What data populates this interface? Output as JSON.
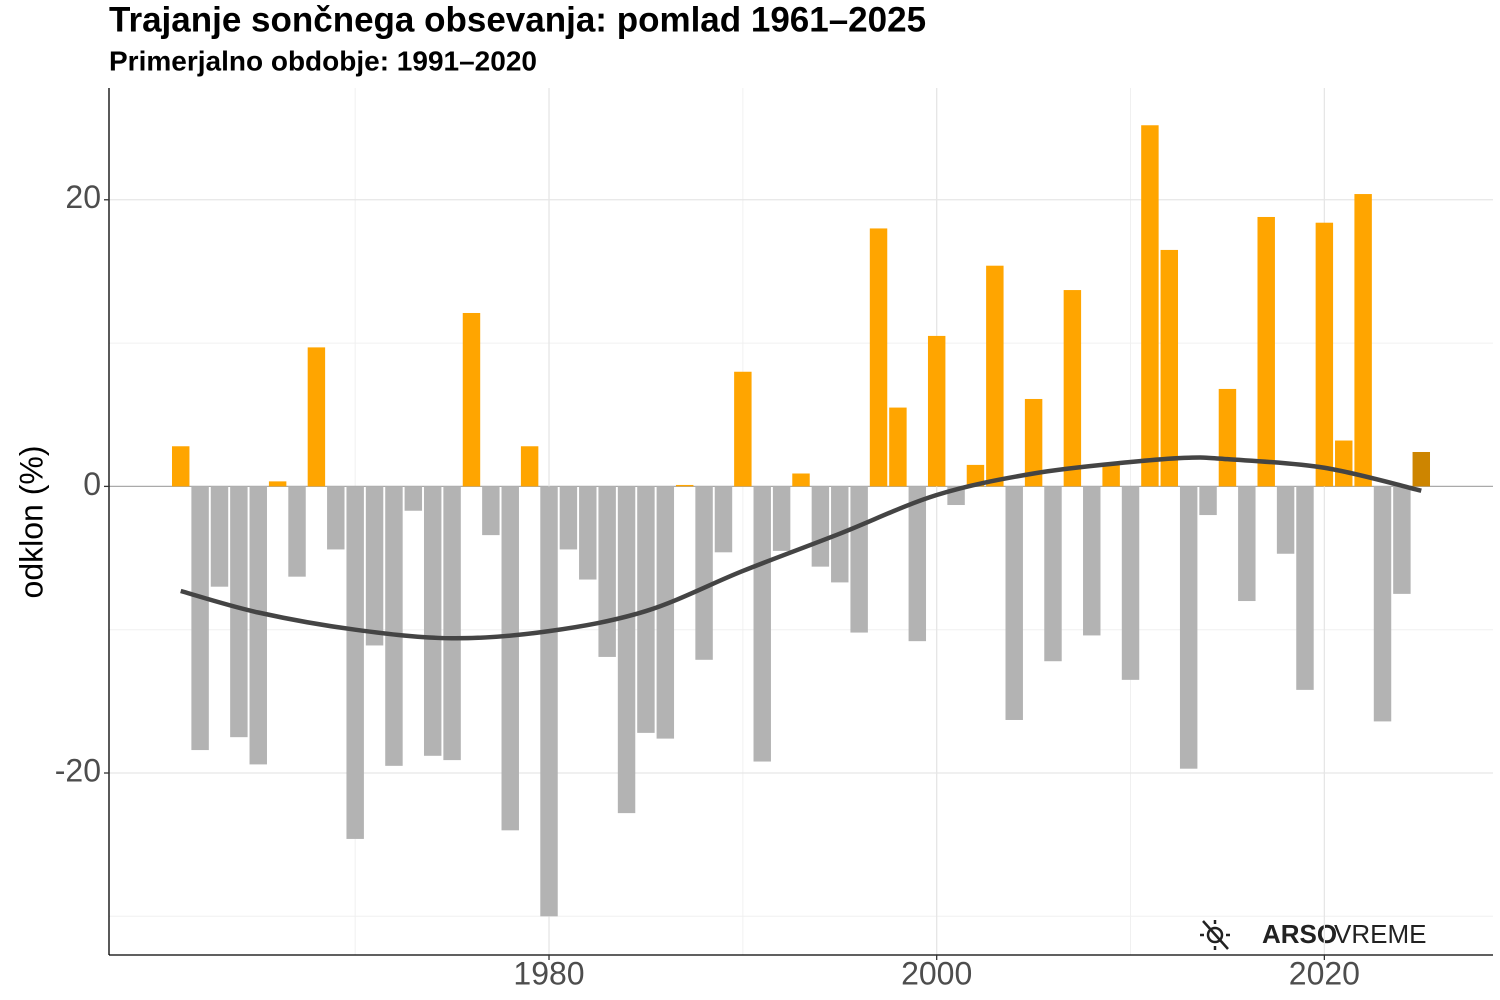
{
  "chart_data": {
    "type": "bar",
    "title": "Trajanje sončnega obsevanja: pomlad 1961–2025",
    "subtitle": "Primerjalno obdobje: 1991–2020",
    "ylabel": "odklon (%)",
    "x": [
      1961,
      1962,
      1963,
      1964,
      1965,
      1966,
      1967,
      1968,
      1969,
      1970,
      1971,
      1972,
      1973,
      1974,
      1975,
      1976,
      1977,
      1978,
      1979,
      1980,
      1981,
      1982,
      1983,
      1984,
      1985,
      1986,
      1987,
      1988,
      1989,
      1990,
      1991,
      1992,
      1993,
      1994,
      1995,
      1996,
      1997,
      1998,
      1999,
      2000,
      2001,
      2002,
      2003,
      2004,
      2005,
      2006,
      2007,
      2008,
      2009,
      2010,
      2011,
      2012,
      2013,
      2014,
      2015,
      2016,
      2017,
      2018,
      2019,
      2020,
      2021,
      2022,
      2023,
      2024,
      2025
    ],
    "values": [
      2.8,
      -18.4,
      -7.0,
      -17.5,
      -19.4,
      0.35,
      -6.3,
      9.7,
      -4.4,
      -24.6,
      -11.1,
      -19.5,
      -1.7,
      -18.8,
      -19.1,
      12.1,
      -3.4,
      -24.0,
      2.8,
      -30.0,
      -4.4,
      -6.5,
      -11.9,
      -22.8,
      -17.2,
      -17.6,
      0.1,
      -12.1,
      -4.6,
      8.0,
      -19.2,
      -4.5,
      0.9,
      -5.6,
      -6.7,
      -10.2,
      18.0,
      5.5,
      -10.8,
      10.5,
      -1.3,
      1.5,
      15.4,
      -16.3,
      6.1,
      -12.2,
      13.7,
      -10.4,
      1.5,
      -13.5,
      25.2,
      16.5,
      -19.7,
      -2.0,
      6.8,
      -8.0,
      18.8,
      -4.7,
      -14.2,
      18.4,
      3.2,
      20.4,
      -16.4,
      -7.5,
      2.4
    ],
    "color_positive": "#ffa500",
    "color_negative": "#b3b3b3",
    "color_last": "#cd8500",
    "trend": {
      "color": "#444444",
      "x": [
        1961,
        1965,
        1970,
        1975,
        1980,
        1985,
        1990,
        1995,
        2000,
        2005,
        2010,
        2013,
        2015,
        2020,
        2025
      ],
      "values": [
        -7.3,
        -8.8,
        -10.0,
        -10.6,
        -10.1,
        -8.7,
        -5.9,
        -3.3,
        -0.6,
        0.9,
        1.7,
        2.0,
        1.9,
        1.3,
        -0.3
      ]
    },
    "xlim": [
      1957.3,
      2028.7
    ],
    "xticks": [
      1980,
      2000,
      2020
    ],
    "xminor": [
      1970,
      1990,
      2010
    ],
    "ylim": [
      -32.7,
      27.8
    ],
    "yticks": [
      -20,
      0,
      20
    ],
    "yminor": [
      -30,
      -10,
      10
    ],
    "grid": true,
    "logo": [
      "ARSO",
      "VREME"
    ]
  }
}
